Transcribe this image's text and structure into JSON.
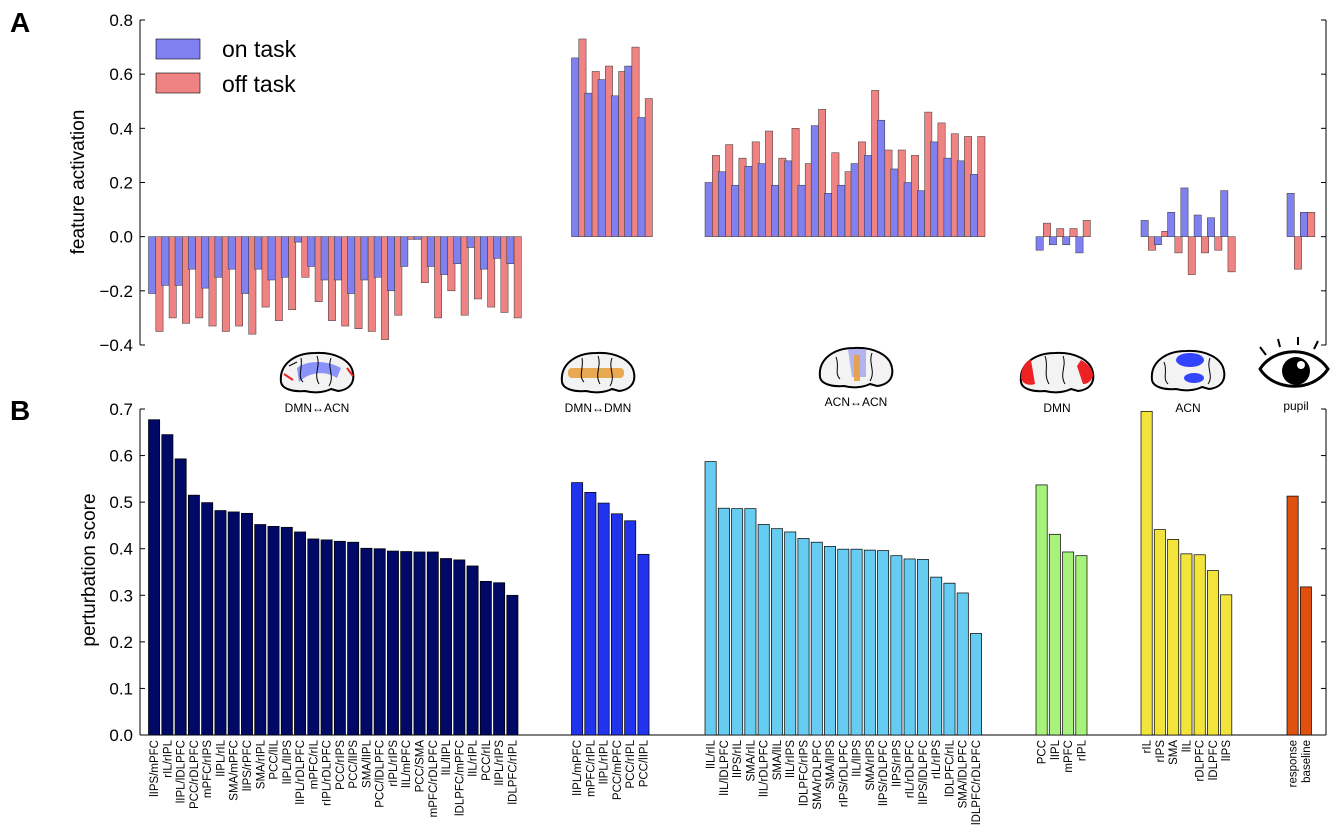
{
  "panel_labels": {
    "a": "A",
    "b": "B"
  },
  "group_labels": [
    "DMN↔ACN",
    "DMN↔DMN",
    "ACN↔ACN",
    "DMN",
    "ACN",
    "pupil"
  ],
  "colors": {
    "on_task": "#8080f0",
    "off_task": "#ef8383",
    "groupB": [
      "#000a66",
      "#2233ee",
      "#66ccf2",
      "#a6f27a",
      "#f2e43a",
      "#e0500e"
    ],
    "brain_blue": "#3344ff",
    "brain_red": "#ee2222",
    "brain_orange": "#e8a040"
  },
  "icons": [
    "brain-dmn-acn-icon",
    "brain-dmn-dmn-icon",
    "brain-acn-acn-icon",
    "brain-dmn-icon",
    "brain-acn-icon",
    "eye-icon"
  ],
  "chart_data": [
    {
      "type": "bar",
      "panel": "A",
      "ylabel": "feature activation",
      "ylim": [
        -0.4,
        0.8
      ],
      "yticks": [
        "−0.4",
        "−0.2",
        "0.0",
        "0.2",
        "0.4",
        "0.6",
        "0.8"
      ],
      "legend": {
        "placement": "top-left",
        "entries": [
          "on task",
          "off task"
        ]
      },
      "series": [
        {
          "name": "on task",
          "groups": [
            [
              -0.21,
              -0.18,
              -0.18,
              -0.12,
              -0.19,
              -0.15,
              -0.12,
              -0.21,
              -0.12,
              -0.16,
              -0.15,
              -0.02,
              -0.11,
              -0.16,
              -0.16,
              -0.21,
              -0.16,
              -0.15,
              -0.2,
              -0.11,
              -0.01,
              -0.11,
              -0.14,
              -0.1,
              -0.04,
              -0.12,
              -0.08,
              -0.1
            ],
            [
              0.66,
              0.53,
              0.58,
              0.52,
              0.63,
              0.44
            ],
            [
              0.2,
              0.24,
              0.19,
              0.26,
              0.27,
              0.19,
              0.28,
              0.19,
              0.41,
              0.16,
              0.19,
              0.27,
              0.3,
              0.43,
              0.25,
              0.2,
              0.17,
              0.35,
              0.29,
              0.28,
              0.23
            ],
            [
              -0.05,
              -0.03,
              -0.03,
              -0.06
            ],
            [
              0.06,
              -0.03,
              0.09,
              0.18,
              0.08,
              0.07,
              0.17
            ],
            [
              0.16,
              0.09
            ]
          ]
        },
        {
          "name": "off task",
          "groups": [
            [
              -0.35,
              -0.3,
              -0.32,
              -0.3,
              -0.33,
              -0.35,
              -0.33,
              -0.36,
              -0.26,
              -0.31,
              -0.27,
              -0.15,
              -0.24,
              -0.31,
              -0.33,
              -0.34,
              -0.35,
              -0.38,
              -0.29,
              -0.01,
              -0.17,
              -0.3,
              -0.2,
              -0.29,
              -0.23,
              -0.26,
              -0.28,
              -0.3
            ],
            [
              0.73,
              0.61,
              0.63,
              0.61,
              0.7,
              0.51
            ],
            [
              0.3,
              0.34,
              0.29,
              0.35,
              0.39,
              0.29,
              0.4,
              0.27,
              0.47,
              0.31,
              0.24,
              0.35,
              0.54,
              0.32,
              0.32,
              0.3,
              0.46,
              0.42,
              0.38,
              0.37,
              0.37
            ],
            [
              0.05,
              0.03,
              0.03,
              0.06
            ],
            [
              -0.05,
              0.02,
              -0.06,
              -0.14,
              -0.06,
              -0.05,
              -0.13
            ],
            [
              -0.12,
              0.09
            ]
          ]
        }
      ]
    },
    {
      "type": "bar",
      "panel": "B",
      "ylabel": "perturbation score",
      "ylim": [
        0.0,
        0.7
      ],
      "yticks": [
        "0.0",
        "0.1",
        "0.2",
        "0.3",
        "0.4",
        "0.5",
        "0.6",
        "0.7"
      ],
      "groups": [
        {
          "name": "DMN↔ACN",
          "categories": [
            "lIPS/mPFC",
            "rIL/rIPL",
            "lIPL/lDLPFC",
            "PCC/rDLPFC",
            "mPFC/rIPS",
            "lIPL/rIL",
            "SMA/mPFC",
            "lIPS/rPFC",
            "SMA/rIPL",
            "PCC/lIL",
            "lIPL/lIPS",
            "lIPL/rDLPFC",
            "mPFC/rIL",
            "rIPL/rDLPFC",
            "PCC/rIPS",
            "PCC/lIPS",
            "SMA/lIPL",
            "PCC/lDLPFC",
            "rIPL/rIPS",
            "lIL/mPFC",
            "PCC/SMA",
            "mPFC/rDLPFC",
            "lIL/lIPL",
            "lDLPFC/mPFC",
            "lIL/rIPL",
            "PCC/rIL",
            "lIPL/rIPS",
            "lDLPFC/rIPL"
          ],
          "values": [
            0.677,
            0.645,
            0.593,
            0.515,
            0.499,
            0.482,
            0.479,
            0.476,
            0.452,
            0.448,
            0.446,
            0.436,
            0.421,
            0.419,
            0.416,
            0.414,
            0.401,
            0.4,
            0.395,
            0.394,
            0.393,
            0.393,
            0.379,
            0.376,
            0.363,
            0.33,
            0.327,
            0.3
          ]
        },
        {
          "name": "DMN↔DMN",
          "categories": [
            "lIPL/mPFC",
            "mPFC/rIPL",
            "lIPL/rIPL",
            "PCC/mPFC",
            "PCC/rIPL",
            "PCC/lIPL"
          ],
          "values": [
            0.542,
            0.521,
            0.498,
            0.475,
            0.46,
            0.388
          ]
        },
        {
          "name": "ACN↔ACN",
          "categories": [
            "lIL/rIL",
            "lIL/lDLPFC",
            "lIPS/rIL",
            "SMA/rIL",
            "lIL/rDLPFC",
            "SMA/lIL",
            "lIL/rIPS",
            "lDLPFC/rIPS",
            "SMA/rDLPFC",
            "SMA/lIPS",
            "rIPS/rDLPFC",
            "lIL/lIPS",
            "SMA/rIPS",
            "lIPS/rDLPFC",
            "lIPS/rIPS",
            "rIL/rDLPFC",
            "lIPS/lDLPFC",
            "rIL/rIPS",
            "lDLPFC/rIL",
            "SMA/lDLPFC",
            "lDLPFC/rDLPFC"
          ],
          "values": [
            0.587,
            0.487,
            0.486,
            0.486,
            0.452,
            0.443,
            0.436,
            0.422,
            0.414,
            0.405,
            0.399,
            0.399,
            0.397,
            0.396,
            0.385,
            0.378,
            0.377,
            0.339,
            0.326,
            0.305,
            0.218
          ]
        },
        {
          "name": "DMN",
          "categories": [
            "PCC",
            "lIPL",
            "mPFC",
            "rIPL"
          ],
          "values": [
            0.537,
            0.431,
            0.393,
            0.385
          ]
        },
        {
          "name": "ACN",
          "categories": [
            "rIL",
            "rIPS",
            "SMA",
            "lIL",
            "rDLPFC",
            "lDLPFC",
            "lIPS"
          ],
          "values": [
            0.695,
            0.441,
            0.42,
            0.389,
            0.387,
            0.353,
            0.301
          ]
        },
        {
          "name": "pupil",
          "categories": [
            "response",
            "baseline"
          ],
          "values": [
            0.513,
            0.318
          ]
        }
      ]
    }
  ]
}
